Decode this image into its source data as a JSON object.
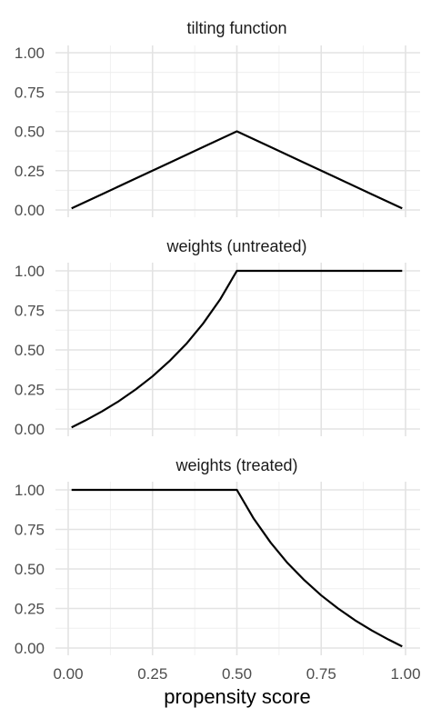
{
  "chart_data": {
    "type": "line",
    "xlabel": "propensity score",
    "x_ticks": [
      "0.00",
      "0.25",
      "0.50",
      "0.75",
      "1.00"
    ],
    "y_ticks": [
      "0.00",
      "0.25",
      "0.50",
      "0.75",
      "1.00"
    ],
    "xlim": [
      0,
      1
    ],
    "ylim": [
      0,
      1
    ],
    "grid": true,
    "panels": [
      {
        "title": "tilting function",
        "x": [
          0.01,
          0.1,
          0.2,
          0.3,
          0.4,
          0.5,
          0.6,
          0.7,
          0.8,
          0.9,
          0.99
        ],
        "y": [
          0.01,
          0.1,
          0.2,
          0.3,
          0.4,
          0.5,
          0.4,
          0.3,
          0.2,
          0.1,
          0.01
        ]
      },
      {
        "title": "weights (untreated)",
        "x": [
          0.01,
          0.05,
          0.1,
          0.15,
          0.2,
          0.25,
          0.3,
          0.35,
          0.4,
          0.45,
          0.5,
          0.6,
          0.7,
          0.8,
          0.9,
          0.99
        ],
        "y": [
          0.01,
          0.053,
          0.111,
          0.176,
          0.25,
          0.333,
          0.429,
          0.538,
          0.667,
          0.818,
          1.0,
          1.0,
          1.0,
          1.0,
          1.0,
          1.0
        ]
      },
      {
        "title": "weights (treated)",
        "x": [
          0.01,
          0.1,
          0.2,
          0.3,
          0.4,
          0.5,
          0.55,
          0.6,
          0.65,
          0.7,
          0.75,
          0.8,
          0.85,
          0.9,
          0.95,
          0.99
        ],
        "y": [
          1.0,
          1.0,
          1.0,
          1.0,
          1.0,
          1.0,
          0.818,
          0.667,
          0.538,
          0.429,
          0.333,
          0.25,
          0.176,
          0.111,
          0.053,
          0.01
        ]
      }
    ]
  }
}
